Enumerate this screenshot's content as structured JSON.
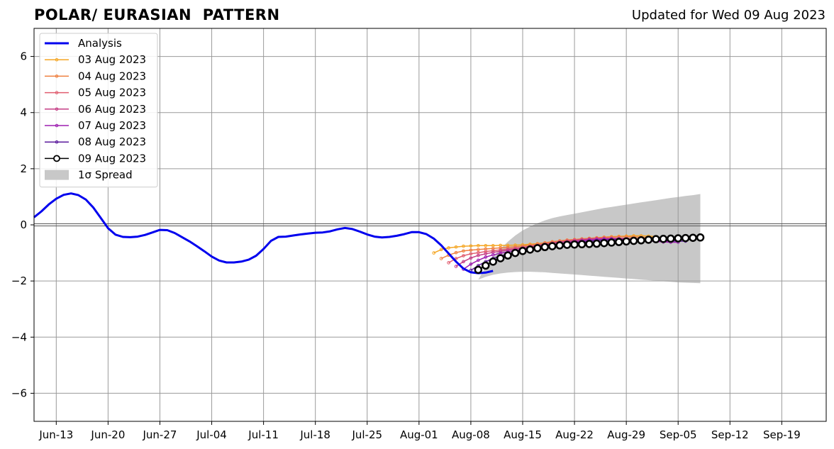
{
  "chart_data": {
    "type": "line",
    "title": "POLAR/ EURASIAN  PATTERN",
    "subtitle": "Updated for Wed 09 Aug 2023",
    "xlabel": "",
    "ylabel": "",
    "x_start_date": "2023-06-10",
    "xlim": [
      "2023-06-10",
      "2023-09-25"
    ],
    "ylim": [
      -7,
      7
    ],
    "grid": true,
    "legend_position": "upper-left",
    "x_ticks": [
      {
        "date": "2023-06-13",
        "label": "Jun-13"
      },
      {
        "date": "2023-06-20",
        "label": "Jun-20"
      },
      {
        "date": "2023-06-27",
        "label": "Jun-27"
      },
      {
        "date": "2023-07-04",
        "label": "Jul-04"
      },
      {
        "date": "2023-07-11",
        "label": "Jul-11"
      },
      {
        "date": "2023-07-18",
        "label": "Jul-18"
      },
      {
        "date": "2023-07-25",
        "label": "Jul-25"
      },
      {
        "date": "2023-08-01",
        "label": "Aug-01"
      },
      {
        "date": "2023-08-08",
        "label": "Aug-08"
      },
      {
        "date": "2023-08-15",
        "label": "Aug-15"
      },
      {
        "date": "2023-08-22",
        "label": "Aug-22"
      },
      {
        "date": "2023-08-29",
        "label": "Aug-29"
      },
      {
        "date": "2023-09-05",
        "label": "Sep-05"
      },
      {
        "date": "2023-09-12",
        "label": "Sep-12"
      },
      {
        "date": "2023-09-19",
        "label": "Sep-19"
      }
    ],
    "y_ticks": [
      {
        "value": 6,
        "label": "6"
      },
      {
        "value": 4,
        "label": "4"
      },
      {
        "value": 2,
        "label": "2"
      },
      {
        "value": 0,
        "label": "0"
      },
      {
        "value": -2,
        "label": "−2"
      },
      {
        "value": -4,
        "label": "−4"
      },
      {
        "value": -6,
        "label": "−6"
      }
    ],
    "analysis": {
      "name": "Analysis",
      "color": "#0000ee",
      "start_date": "2023-06-10",
      "values": [
        0.27,
        0.48,
        0.73,
        0.93,
        1.07,
        1.12,
        1.06,
        0.9,
        0.62,
        0.25,
        -0.12,
        -0.35,
        -0.43,
        -0.44,
        -0.42,
        -0.36,
        -0.27,
        -0.18,
        -0.19,
        -0.29,
        -0.44,
        -0.59,
        -0.76,
        -0.94,
        -1.13,
        -1.27,
        -1.34,
        -1.34,
        -1.31,
        -1.24,
        -1.1,
        -0.86,
        -0.57,
        -0.43,
        -0.42,
        -0.38,
        -0.34,
        -0.31,
        -0.28,
        -0.27,
        -0.23,
        -0.16,
        -0.11,
        -0.15,
        -0.24,
        -0.34,
        -0.42,
        -0.45,
        -0.43,
        -0.39,
        -0.33,
        -0.26,
        -0.26,
        -0.33,
        -0.49,
        -0.73,
        -1.02,
        -1.31,
        -1.56,
        -1.69,
        -1.72,
        -1.7,
        -1.64
      ]
    },
    "forecasts": [
      {
        "name": "03 Aug 2023",
        "color": "#f5a623",
        "start_date": "2023-08-03",
        "values": [
          -1.0,
          -0.88,
          -0.82,
          -0.79,
          -0.76,
          -0.75,
          -0.74,
          -0.74,
          -0.74,
          -0.73,
          -0.73,
          -0.72,
          -0.71,
          -0.69,
          -0.67,
          -0.64,
          -0.61,
          -0.58,
          -0.55,
          -0.53,
          -0.5,
          -0.48,
          -0.46,
          -0.44,
          -0.42,
          -0.41,
          -0.4,
          -0.39,
          -0.39,
          -0.4,
          -0.42
        ]
      },
      {
        "name": "04 Aug 2023",
        "color": "#ef7f3f",
        "start_date": "2023-08-04",
        "values": [
          -1.2,
          -1.08,
          -0.99,
          -0.93,
          -0.9,
          -0.88,
          -0.86,
          -0.84,
          -0.82,
          -0.8,
          -0.78,
          -0.75,
          -0.72,
          -0.68,
          -0.64,
          -0.6,
          -0.57,
          -0.54,
          -0.52,
          -0.5,
          -0.48,
          -0.46,
          -0.44,
          -0.43,
          -0.42,
          -0.42,
          -0.43,
          -0.44,
          -0.45,
          -0.46
        ]
      },
      {
        "name": "05 Aug 2023",
        "color": "#e05d6f",
        "start_date": "2023-08-05",
        "values": [
          -1.35,
          -1.2,
          -1.1,
          -1.03,
          -0.99,
          -0.95,
          -0.92,
          -0.89,
          -0.86,
          -0.83,
          -0.8,
          -0.76,
          -0.72,
          -0.68,
          -0.64,
          -0.6,
          -0.57,
          -0.54,
          -0.52,
          -0.5,
          -0.48,
          -0.47,
          -0.47,
          -0.47,
          -0.48,
          -0.49,
          -0.5,
          -0.51,
          -0.52,
          -0.53
        ]
      },
      {
        "name": "06 Aug 2023",
        "color": "#c43c85",
        "start_date": "2023-08-06",
        "values": [
          -1.48,
          -1.31,
          -1.18,
          -1.09,
          -1.03,
          -0.98,
          -0.94,
          -0.9,
          -0.86,
          -0.82,
          -0.78,
          -0.74,
          -0.7,
          -0.66,
          -0.62,
          -0.59,
          -0.56,
          -0.53,
          -0.51,
          -0.5,
          -0.49,
          -0.49,
          -0.5,
          -0.51,
          -0.52,
          -0.53,
          -0.55,
          -0.56,
          -0.57,
          -0.58
        ]
      },
      {
        "name": "07 Aug 2023",
        "color": "#9d1fb0",
        "start_date": "2023-08-07",
        "values": [
          -1.58,
          -1.4,
          -1.26,
          -1.15,
          -1.07,
          -1.01,
          -0.96,
          -0.91,
          -0.87,
          -0.83,
          -0.79,
          -0.75,
          -0.71,
          -0.67,
          -0.63,
          -0.6,
          -0.57,
          -0.54,
          -0.52,
          -0.51,
          -0.5,
          -0.5,
          -0.51,
          -0.53,
          -0.55,
          -0.57,
          -0.59,
          -0.61,
          -0.62,
          -0.62
        ]
      },
      {
        "name": "08 Aug 2023",
        "color": "#5b1a9c",
        "start_date": "2023-08-08",
        "values": [
          -1.62,
          -1.45,
          -1.31,
          -1.2,
          -1.11,
          -1.04,
          -0.98,
          -0.93,
          -0.88,
          -0.84,
          -0.8,
          -0.76,
          -0.72,
          -0.68,
          -0.64,
          -0.61,
          -0.58,
          -0.56,
          -0.54,
          -0.53,
          -0.52,
          -0.52,
          -0.52,
          -0.53,
          -0.54,
          -0.55,
          -0.56,
          -0.57,
          -0.58,
          -0.58
        ]
      },
      {
        "name": "09 Aug 2023",
        "color": "#000000",
        "start_date": "2023-08-09",
        "values": [
          -1.6,
          -1.45,
          -1.31,
          -1.19,
          -1.09,
          -1.0,
          -0.93,
          -0.88,
          -0.83,
          -0.79,
          -0.76,
          -0.73,
          -0.71,
          -0.7,
          -0.69,
          -0.68,
          -0.67,
          -0.65,
          -0.63,
          -0.61,
          -0.59,
          -0.57,
          -0.55,
          -0.53,
          -0.51,
          -0.5,
          -0.49,
          -0.48,
          -0.47,
          -0.46,
          -0.45
        ]
      }
    ],
    "spread": {
      "name": "1σ Spread",
      "color": "#c8c8c8",
      "start_date": "2023-08-09",
      "upper": [
        -1.95,
        -1.5,
        -1.15,
        -0.85,
        -0.6,
        -0.38,
        -0.2,
        -0.06,
        0.06,
        0.16,
        0.24,
        0.3,
        0.35,
        0.4,
        0.45,
        0.5,
        0.55,
        0.6,
        0.64,
        0.68,
        0.72,
        0.76,
        0.8,
        0.84,
        0.88,
        0.92,
        0.96,
        0.99,
        1.03,
        1.06,
        1.1
      ],
      "lower": [
        -1.95,
        -1.85,
        -1.78,
        -1.73,
        -1.7,
        -1.68,
        -1.67,
        -1.67,
        -1.68,
        -1.69,
        -1.71,
        -1.73,
        -1.75,
        -1.77,
        -1.79,
        -1.81,
        -1.83,
        -1.85,
        -1.87,
        -1.89,
        -1.91,
        -1.93,
        -1.95,
        -1.97,
        -1.99,
        -2.01,
        -2.03,
        -2.05,
        -2.06,
        -2.07,
        -2.08
      ]
    }
  }
}
